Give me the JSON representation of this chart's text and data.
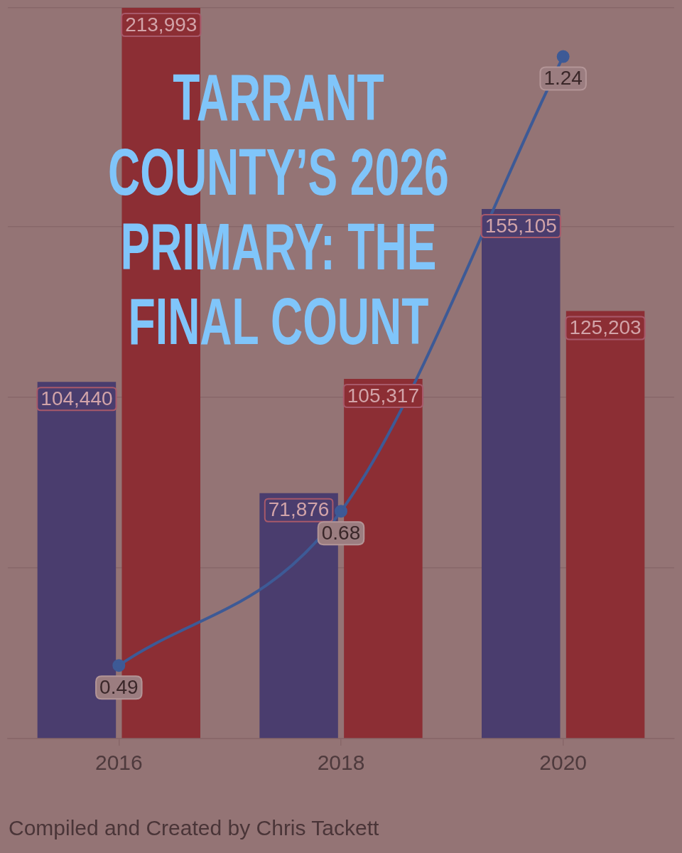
{
  "chart_data": {
    "type": "bar",
    "title": "TARRANT COUNTY’S 2026 PRIMARY: THE FINAL COUNT",
    "categories": [
      "2016",
      "2018",
      "2020"
    ],
    "series": [
      {
        "color": "#4a3d6e",
        "values": [
          104440,
          71876,
          155105
        ],
        "value_labels": [
          "104,440",
          "71,876",
          "155,105"
        ]
      },
      {
        "color": "#8c2e34",
        "values": [
          213993,
          105317,
          125203
        ],
        "value_labels": [
          "213,993",
          "105,317",
          "125,203"
        ]
      },
      {
        "type": "line",
        "axis": "y2",
        "color": "#3d5a96",
        "values": [
          0.49,
          0.68,
          1.24
        ],
        "value_labels": [
          "0.49",
          "0.68",
          "1.24"
        ]
      }
    ],
    "grid": "y",
    "tick_labels": "x",
    "marker": "circle",
    "annotations": [
      "Compiled and Created by Chris Tackett"
    ]
  }
}
